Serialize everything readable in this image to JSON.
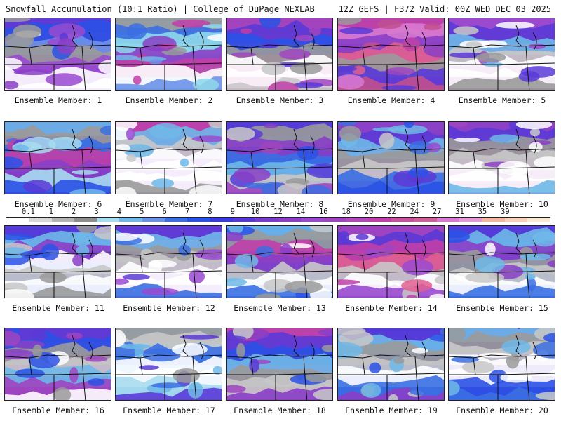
{
  "header": {
    "title": "Snowfall Accumulation (10:1 Ratio) | College of DuPage NEXLAB",
    "run_info": "12Z GEFS | F372 Valid: 00Z WED DEC 03 2025"
  },
  "panel_label_prefix": "Ensemble Member: ",
  "members": [
    {
      "label": "Ensemble Member: 1",
      "palette": [
        "#8a3fc6",
        "#5a3ad6",
        "#2a52e6",
        "#6c92e8",
        "#9a9a9a",
        "#9a4ad0",
        "#ffffff",
        "#ffffff"
      ]
    },
    {
      "label": "Ensemble Member: 2",
      "palette": [
        "#6fb8e8",
        "#9a9a9a",
        "#3b6fe2",
        "#8fd8ea",
        "#8a3fc6",
        "#c040a8",
        "#ffffff",
        "#6c92e8"
      ]
    },
    {
      "label": "Ensemble Member: 3",
      "palette": [
        "#c040a8",
        "#a045c0",
        "#5a3ad6",
        "#2a52e6",
        "#9a9a9a",
        "#ffffff",
        "#ffffff",
        "#c8c8c8"
      ]
    },
    {
      "label": "Ensemble Member: 4",
      "palette": [
        "#a045c0",
        "#c040a8",
        "#d87ad0",
        "#8a3fc6",
        "#e06090",
        "#9a9a9a",
        "#5a3ad6",
        "#c0508e"
      ]
    },
    {
      "label": "Ensemble Member: 5",
      "palette": [
        "#a045c0",
        "#9a4ad0",
        "#5a3ad6",
        "#6fb8e8",
        "#c8c8c8",
        "#ffffff",
        "#ffffff",
        "#9a9a9a"
      ]
    },
    {
      "label": "Ensemble Member: 6",
      "palette": [
        "#5a3ad6",
        "#6fb8e8",
        "#9a9a9a",
        "#3b6fe2",
        "#c040a8",
        "#8a3fc6",
        "#a7dcef",
        "#2a52e6"
      ]
    },
    {
      "label": "Ensemble Member: 7",
      "palette": [
        "#9a4ad0",
        "#c040a8",
        "#6fb8e8",
        "#c8c8c8",
        "#ffffff",
        "#ffffff",
        "#ffffff",
        "#9a9a9a"
      ]
    },
    {
      "label": "Ensemble Member: 8",
      "palette": [
        "#2a52e6",
        "#5a3ad6",
        "#9a9a9a",
        "#8a3fc6",
        "#3b6fe2",
        "#6fb8e8",
        "#c8c8c8",
        "#a045c0"
      ]
    },
    {
      "label": "Ensemble Member: 9",
      "palette": [
        "#9a4ad0",
        "#8a3fc6",
        "#5a3ad6",
        "#6fb8e8",
        "#9a9a9a",
        "#c8c8c8",
        "#3b6fe2",
        "#2a52e6"
      ]
    },
    {
      "label": "Ensemble Member: 10",
      "palette": [
        "#a045c0",
        "#8a3fc6",
        "#5a3ad6",
        "#9a9a9a",
        "#c8c8c8",
        "#ffffff",
        "#ffffff",
        "#6fb8e8"
      ]
    },
    {
      "label": "Ensemble Member: 11",
      "palette": [
        "#2a52e6",
        "#5a3ad6",
        "#6fb8e8",
        "#8a3fc6",
        "#ffffff",
        "#c8c8c8",
        "#ffffff",
        "#9a9a9a"
      ]
    },
    {
      "label": "Ensemble Member: 12",
      "palette": [
        "#9a4ad0",
        "#5a3ad6",
        "#6fb8e8",
        "#9a9a9a",
        "#c8c8c8",
        "#ffffff",
        "#ffffff",
        "#3b6fe2"
      ]
    },
    {
      "label": "Ensemble Member: 13",
      "palette": [
        "#2a52e6",
        "#6fb8e8",
        "#9a9a9a",
        "#c040a8",
        "#8a3fc6",
        "#c8c8c8",
        "#ffffff",
        "#3b6fe2"
      ]
    },
    {
      "label": "Ensemble Member: 14",
      "palette": [
        "#8a3fc6",
        "#a045c0",
        "#5a3ad6",
        "#c040a8",
        "#e06090",
        "#c8c8c8",
        "#ffffff",
        "#9a4ad0"
      ]
    },
    {
      "label": "Ensemble Member: 15",
      "palette": [
        "#2a52e6",
        "#5a3ad6",
        "#6fb8e8",
        "#8a3fc6",
        "#9a9a9a",
        "#c8c8c8",
        "#ffffff",
        "#3b6fe2"
      ]
    },
    {
      "label": "Ensemble Member: 16",
      "palette": [
        "#8a3fc6",
        "#5a3ad6",
        "#2a52e6",
        "#9a9a9a",
        "#c8c8c8",
        "#6fb8e8",
        "#a045c0",
        "#ffffff"
      ]
    },
    {
      "label": "Ensemble Member: 17",
      "palette": [
        "#6fb8e8",
        "#9a9a9a",
        "#c8c8c8",
        "#3b6fe2",
        "#ffffff",
        "#ffffff",
        "#a7dcef",
        "#5a3ad6"
      ]
    },
    {
      "label": "Ensemble Member: 18",
      "palette": [
        "#a045c0",
        "#c040a8",
        "#5a3ad6",
        "#2a52e6",
        "#6fb8e8",
        "#9a9a9a",
        "#c8c8c8",
        "#8a3fc6"
      ]
    },
    {
      "label": "Ensemble Member: 19",
      "palette": [
        "#2a52e6",
        "#5a3ad6",
        "#6fb8e8",
        "#9a9a9a",
        "#c8c8c8",
        "#ffffff",
        "#3b6fe2",
        "#8a3fc6"
      ]
    },
    {
      "label": "Ensemble Member: 20",
      "palette": [
        "#5a3ad6",
        "#6fb8e8",
        "#9a9a9a",
        "#c8c8c8",
        "#ffffff",
        "#ffffff",
        "#2a52e6",
        "#3b6fe2"
      ]
    }
  ],
  "legend": {
    "labels": [
      "0.1",
      "1",
      "2",
      "3",
      "4",
      "5",
      "6",
      "7",
      "8",
      "9",
      "10",
      "12",
      "14",
      "16",
      "18",
      "20",
      "22",
      "24",
      "27",
      "31",
      "35",
      "39"
    ],
    "colors": [
      "#ffffff",
      "#d8d8d8",
      "#b4b4b4",
      "#8e8e8e",
      "#a7dcef",
      "#6fb8e8",
      "#6c92e8",
      "#3b6fe2",
      "#2a52e6",
      "#3a3ade",
      "#5a3ad6",
      "#7a3ccc",
      "#8a3fc6",
      "#9a4ad0",
      "#a045c0",
      "#b04ab8",
      "#c040a8",
      "#c8509c",
      "#d06098",
      "#d87ad0",
      "#e69ad8",
      "#f0b8a0",
      "#f6d0b8",
      "#faebd7"
    ]
  }
}
